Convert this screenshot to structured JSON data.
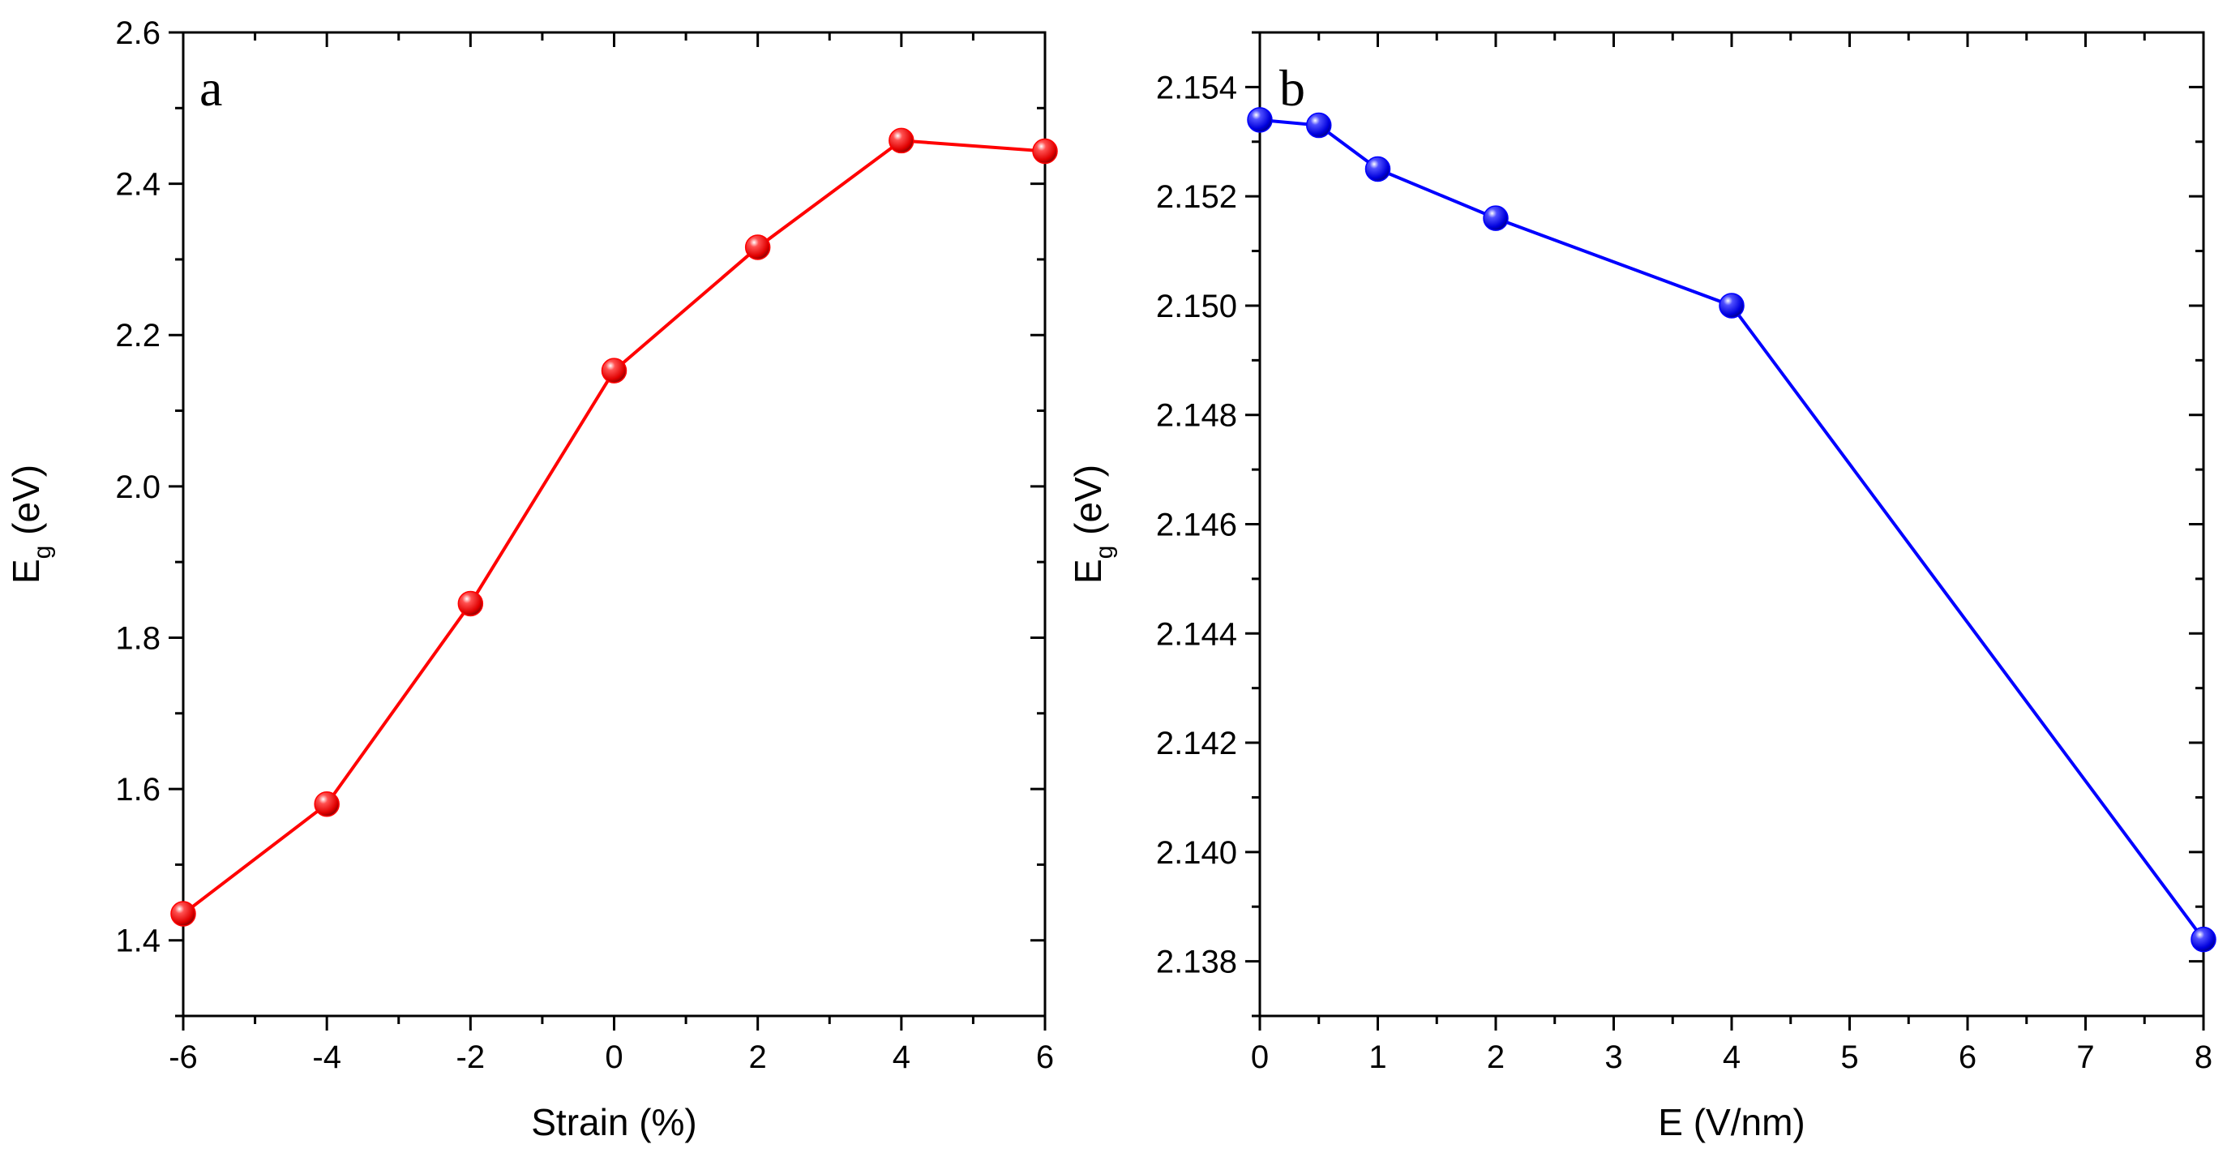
{
  "chart_data": [
    {
      "panel": "a",
      "type": "line",
      "xlabel": "Strain (%)",
      "ylabel": "E",
      "ylabel_sub": "g",
      "ylabel_unit": " (eV)",
      "xlim": [
        -6,
        6
      ],
      "ylim": [
        1.3,
        2.6
      ],
      "xticks": [
        -6,
        -4,
        -2,
        0,
        2,
        4,
        6
      ],
      "yticks": [
        1.4,
        1.6,
        1.8,
        2.0,
        2.2,
        2.4,
        2.6
      ],
      "ytick_decimals": 1,
      "xtick_decimals": 0,
      "color": "#ff0000",
      "series": [
        {
          "x": [
            -6,
            -4,
            -2,
            0,
            2,
            4,
            6
          ],
          "y": [
            1.435,
            1.58,
            1.845,
            2.153,
            2.316,
            2.457,
            2.443
          ]
        }
      ]
    },
    {
      "panel": "b",
      "type": "line",
      "xlabel": "E (V/nm)",
      "ylabel": "E",
      "ylabel_sub": "g",
      "ylabel_unit": " (eV)",
      "xlim": [
        0,
        8
      ],
      "ylim": [
        2.137,
        2.155
      ],
      "xticks": [
        0,
        1,
        2,
        3,
        4,
        5,
        6,
        7,
        8
      ],
      "yticks": [
        2.138,
        2.14,
        2.142,
        2.144,
        2.146,
        2.148,
        2.15,
        2.152,
        2.154
      ],
      "ytick_decimals": 3,
      "xtick_decimals": 0,
      "color": "#0000ff",
      "series": [
        {
          "x": [
            0,
            0.5,
            1,
            2,
            4,
            8
          ],
          "y": [
            2.1534,
            2.1533,
            2.1525,
            2.1516,
            2.15,
            2.1384
          ]
        }
      ]
    }
  ]
}
